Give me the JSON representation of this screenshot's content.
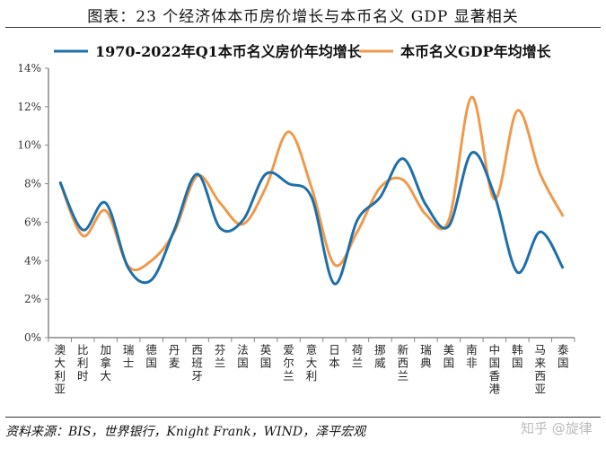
{
  "title": "图表：23 个经济体本币房价增长与本币名义 GDP 显著相关",
  "source": "资料来源：BIS，世界银行，Knight Frank，WIND，泽平宏观",
  "watermark": "知乎 @旋律",
  "chart_data": {
    "type": "line",
    "smooth": true,
    "title": "图表：23 个经济体本币房价增长与本币名义 GDP 显著相关",
    "xlabel": "",
    "ylabel": "",
    "ylim": [
      0,
      14
    ],
    "yticks": [
      "0%",
      "2%",
      "4%",
      "6%",
      "8%",
      "10%",
      "12%",
      "14%"
    ],
    "grid": false,
    "legend_position": "top",
    "categories": [
      "澳大利亚",
      "比利时",
      "加拿大",
      "瑞士",
      "德国",
      "丹麦",
      "西班牙",
      "芬兰",
      "法国",
      "英国",
      "爱尔兰",
      "意大利",
      "日本",
      "荷兰",
      "挪威",
      "新西兰",
      "瑞典",
      "美国",
      "南非",
      "中国香港",
      "韩国",
      "马来西亚",
      "泰国"
    ],
    "series": [
      {
        "name": "1970-2022年Q1本币名义房价年均增长",
        "color": "#1f6fa8",
        "values": [
          8.1,
          5.6,
          7.0,
          3.6,
          3.0,
          5.6,
          8.5,
          5.7,
          6.1,
          8.5,
          8.0,
          7.3,
          2.8,
          6.1,
          7.3,
          9.3,
          6.9,
          5.8,
          9.6,
          7.4,
          3.4,
          5.5,
          3.6
        ]
      },
      {
        "name": "本币名义GDP年均增长",
        "color": "#ee9a4d",
        "values": [
          8.1,
          5.3,
          6.6,
          3.7,
          4.0,
          5.5,
          8.4,
          7.0,
          5.9,
          7.8,
          10.7,
          7.8,
          3.8,
          5.5,
          7.8,
          8.2,
          6.4,
          6.1,
          12.5,
          7.2,
          11.8,
          8.5,
          6.3
        ]
      }
    ]
  }
}
